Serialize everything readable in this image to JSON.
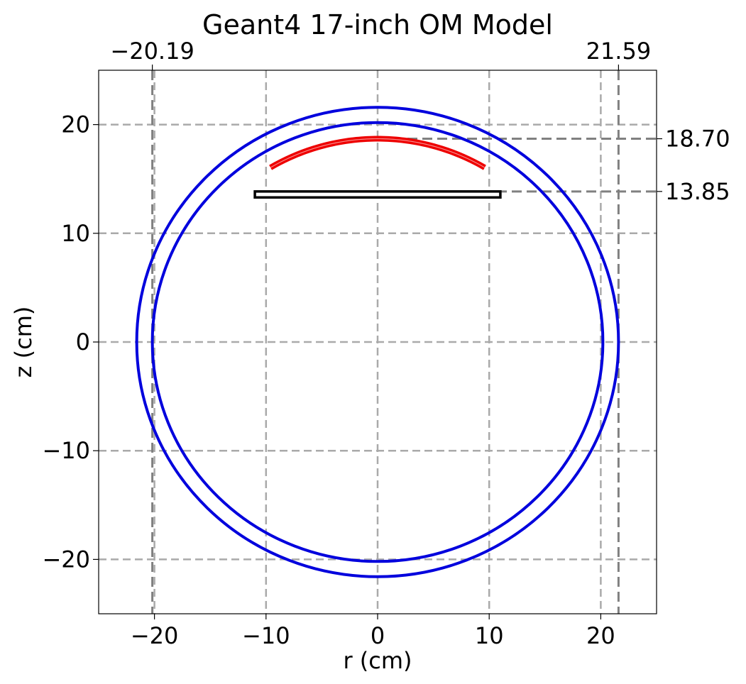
{
  "chart_data": {
    "type": "line",
    "title": "Geant4 17-inch OM Model",
    "xlabel": "r (cm)",
    "ylabel": "z (cm)",
    "xlim": [
      -25,
      25
    ],
    "ylim": [
      -25,
      25
    ],
    "grid": true,
    "x_ticks": [
      -20,
      -10,
      0,
      10,
      20
    ],
    "x_tick_labels": [
      "−20",
      "−10",
      "0",
      "10",
      "20"
    ],
    "y_ticks": [
      -20,
      -10,
      0,
      10,
      20
    ],
    "y_tick_labels": [
      "−20",
      "−10",
      "0",
      "10",
      "20"
    ],
    "top_ticks": [
      -20.19,
      21.59
    ],
    "top_tick_labels": [
      "−20.19",
      "21.59"
    ],
    "right_ticks": [
      18.7,
      13.85
    ],
    "right_tick_labels": [
      "18.70",
      "13.85"
    ],
    "colors": {
      "outer_sphere": "#0000dd",
      "inner_sphere": "#0000dd",
      "photocathode": "#ee0000",
      "pmt_base": "#000000",
      "grid": "#aaaaaa",
      "reference_lines": "#808080"
    },
    "outer_sphere": {
      "center": [
        0,
        0
      ],
      "radius": 21.59
    },
    "inner_sphere": {
      "center": [
        0,
        0
      ],
      "radius": 20.19
    },
    "photocathode": {
      "center_z": 0,
      "radius": 18.7,
      "half_width_r": 9.6
    },
    "pmt_base": {
      "r": [
        -11.0,
        11.0
      ],
      "z": [
        13.3,
        13.85
      ]
    },
    "reference_lines": {
      "vertical_r": [
        -20.19,
        21.59
      ],
      "horizontal_z": [
        18.7,
        13.85
      ]
    }
  }
}
